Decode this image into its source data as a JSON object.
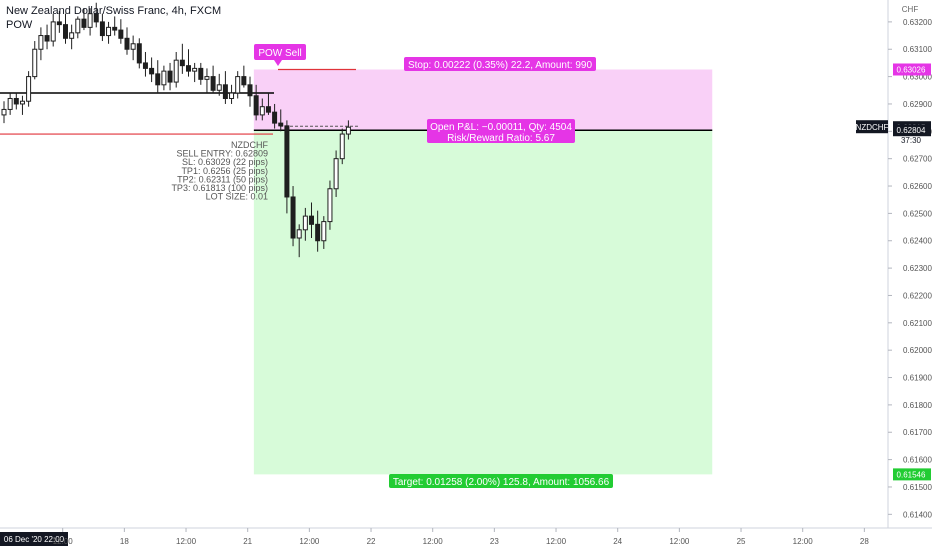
{
  "header": {
    "title": "New Zealand Dollar/Swiss Franc, 4h, FXCM",
    "indicator": "POW"
  },
  "colors": {
    "up_candle": "#1f1f1f",
    "down_candle": "#1f1f1f",
    "stop_zone": "#f9d0f7",
    "target_zone": "#d7fbd9",
    "stop_label": "#e535e6",
    "target_label": "#22cc33",
    "sell_line": "#e0333a",
    "entry_line": "#000000",
    "price_tag": "#131722"
  },
  "chart_data": {
    "type": "candlestick",
    "symbol": "NZDCHF",
    "currency": "CHF",
    "y_ticks": [
      0.632,
      0.631,
      0.63,
      0.629,
      0.628,
      0.627,
      0.626,
      0.625,
      0.624,
      0.623,
      0.622,
      0.621,
      0.62,
      0.619,
      0.618,
      0.617,
      0.616,
      0.615,
      0.614
    ],
    "y_tick_labels": [
      "0.63200",
      "0.63100",
      "0.63000",
      "0.62900",
      "0.62800",
      "0.62700",
      "0.62600",
      "0.62500",
      "0.62400",
      "0.62300",
      "0.62200",
      "0.62100",
      "0.62000",
      "0.61900",
      "0.61800",
      "0.61700",
      "0.61600",
      "0.61500",
      "0.61400"
    ],
    "ylim": [
      0.6135,
      0.6328
    ],
    "x_axis": {
      "start_label": "06 Dec '20  22:00",
      "ticks": [
        {
          "bar": 3,
          "label": "12:00"
        },
        {
          "bar": 6,
          "label": "18"
        },
        {
          "bar": 9,
          "label": "12:00"
        },
        {
          "bar": 12,
          "label": "21"
        },
        {
          "bar": 15,
          "label": "12:00"
        },
        {
          "bar": 18,
          "label": "22"
        },
        {
          "bar": 21,
          "label": "12:00"
        },
        {
          "bar": 24,
          "label": "23"
        },
        {
          "bar": 27,
          "label": "12:00"
        },
        {
          "bar": 30,
          "label": "24"
        },
        {
          "bar": 33,
          "label": "12:00"
        },
        {
          "bar": 36,
          "label": "25"
        },
        {
          "bar": 39,
          "label": "12:00"
        },
        {
          "bar": 42,
          "label": "28"
        }
      ],
      "bar_range": [
        -0.05,
        43.15
      ]
    },
    "candles": [
      {
        "o": 0.6286,
        "h": 0.6291,
        "l": 0.6283,
        "c": 0.6288
      },
      {
        "o": 0.6288,
        "h": 0.6294,
        "l": 0.6286,
        "c": 0.6292
      },
      {
        "o": 0.6292,
        "h": 0.6294,
        "l": 0.6288,
        "c": 0.629
      },
      {
        "o": 0.629,
        "h": 0.6293,
        "l": 0.6286,
        "c": 0.6291
      },
      {
        "o": 0.6291,
        "h": 0.6302,
        "l": 0.6289,
        "c": 0.63
      },
      {
        "o": 0.63,
        "h": 0.6313,
        "l": 0.6299,
        "c": 0.631
      },
      {
        "o": 0.631,
        "h": 0.6318,
        "l": 0.6306,
        "c": 0.6315
      },
      {
        "o": 0.6315,
        "h": 0.6319,
        "l": 0.631,
        "c": 0.6313
      },
      {
        "o": 0.6313,
        "h": 0.6323,
        "l": 0.6311,
        "c": 0.632
      },
      {
        "o": 0.632,
        "h": 0.6324,
        "l": 0.6316,
        "c": 0.6319
      },
      {
        "o": 0.6319,
        "h": 0.6323,
        "l": 0.6312,
        "c": 0.6314
      },
      {
        "o": 0.6314,
        "h": 0.6319,
        "l": 0.631,
        "c": 0.6316
      },
      {
        "o": 0.6316,
        "h": 0.6322,
        "l": 0.6314,
        "c": 0.6321
      },
      {
        "o": 0.6321,
        "h": 0.6325,
        "l": 0.6317,
        "c": 0.6318
      },
      {
        "o": 0.6318,
        "h": 0.6325,
        "l": 0.6315,
        "c": 0.6323
      },
      {
        "o": 0.6323,
        "h": 0.6327,
        "l": 0.6318,
        "c": 0.632
      },
      {
        "o": 0.632,
        "h": 0.6323,
        "l": 0.6313,
        "c": 0.6315
      },
      {
        "o": 0.6315,
        "h": 0.632,
        "l": 0.6312,
        "c": 0.6318
      },
      {
        "o": 0.6318,
        "h": 0.6322,
        "l": 0.6315,
        "c": 0.6317
      },
      {
        "o": 0.6317,
        "h": 0.6321,
        "l": 0.6312,
        "c": 0.6314
      },
      {
        "o": 0.6314,
        "h": 0.6318,
        "l": 0.6308,
        "c": 0.631
      },
      {
        "o": 0.631,
        "h": 0.6315,
        "l": 0.6306,
        "c": 0.6312
      },
      {
        "o": 0.6312,
        "h": 0.6314,
        "l": 0.6303,
        "c": 0.6305
      },
      {
        "o": 0.6305,
        "h": 0.6309,
        "l": 0.63,
        "c": 0.6303
      },
      {
        "o": 0.6303,
        "h": 0.6307,
        "l": 0.6298,
        "c": 0.6301
      },
      {
        "o": 0.6301,
        "h": 0.6306,
        "l": 0.6294,
        "c": 0.6297
      },
      {
        "o": 0.6297,
        "h": 0.6304,
        "l": 0.6295,
        "c": 0.6302
      },
      {
        "o": 0.6302,
        "h": 0.6305,
        "l": 0.6295,
        "c": 0.6298
      },
      {
        "o": 0.6298,
        "h": 0.6309,
        "l": 0.6296,
        "c": 0.6306
      },
      {
        "o": 0.6306,
        "h": 0.6312,
        "l": 0.6301,
        "c": 0.6304
      },
      {
        "o": 0.6304,
        "h": 0.631,
        "l": 0.63,
        "c": 0.6302
      },
      {
        "o": 0.6302,
        "h": 0.6305,
        "l": 0.6298,
        "c": 0.6303
      },
      {
        "o": 0.6303,
        "h": 0.6305,
        "l": 0.6297,
        "c": 0.6299
      },
      {
        "o": 0.6299,
        "h": 0.6303,
        "l": 0.6294,
        "c": 0.63
      },
      {
        "o": 0.63,
        "h": 0.6304,
        "l": 0.6294,
        "c": 0.6295
      },
      {
        "o": 0.6295,
        "h": 0.6301,
        "l": 0.6293,
        "c": 0.6297
      },
      {
        "o": 0.6297,
        "h": 0.6302,
        "l": 0.629,
        "c": 0.6292
      },
      {
        "o": 0.6292,
        "h": 0.6297,
        "l": 0.629,
        "c": 0.6294
      },
      {
        "o": 0.6294,
        "h": 0.6302,
        "l": 0.6292,
        "c": 0.63
      },
      {
        "o": 0.63,
        "h": 0.6304,
        "l": 0.6296,
        "c": 0.6297
      },
      {
        "o": 0.6297,
        "h": 0.63,
        "l": 0.6289,
        "c": 0.6293
      },
      {
        "o": 0.6293,
        "h": 0.6297,
        "l": 0.6284,
        "c": 0.6286
      },
      {
        "o": 0.6286,
        "h": 0.6292,
        "l": 0.6284,
        "c": 0.6289
      },
      {
        "o": 0.6289,
        "h": 0.6294,
        "l": 0.6286,
        "c": 0.6287
      },
      {
        "o": 0.6287,
        "h": 0.629,
        "l": 0.6281,
        "c": 0.6283
      },
      {
        "o": 0.6283,
        "h": 0.6288,
        "l": 0.628,
        "c": 0.6282
      },
      {
        "o": 0.6282,
        "h": 0.6284,
        "l": 0.625,
        "c": 0.6256
      },
      {
        "o": 0.6256,
        "h": 0.626,
        "l": 0.6238,
        "c": 0.6241
      },
      {
        "o": 0.6241,
        "h": 0.6246,
        "l": 0.6234,
        "c": 0.6244
      },
      {
        "o": 0.6244,
        "h": 0.6252,
        "l": 0.624,
        "c": 0.6249
      },
      {
        "o": 0.6249,
        "h": 0.6254,
        "l": 0.6241,
        "c": 0.6246
      },
      {
        "o": 0.6246,
        "h": 0.6251,
        "l": 0.6236,
        "c": 0.624
      },
      {
        "o": 0.624,
        "h": 0.6249,
        "l": 0.6237,
        "c": 0.6247
      },
      {
        "o": 0.6247,
        "h": 0.6262,
        "l": 0.6244,
        "c": 0.6259
      },
      {
        "o": 0.6259,
        "h": 0.6273,
        "l": 0.6256,
        "c": 0.627
      },
      {
        "o": 0.627,
        "h": 0.6281,
        "l": 0.6268,
        "c": 0.6279
      },
      {
        "o": 0.6279,
        "h": 0.6284,
        "l": 0.6277,
        "c": 0.62815
      }
    ],
    "levels": {
      "stop": 0.63026,
      "current": 0.62815,
      "entry": 0.62804,
      "target": 0.61546,
      "sell_signal": 0.63026,
      "horizontal_line": 0.6294,
      "sl_marker": 0.6279
    },
    "position": {
      "start_bar": 12.3,
      "end_bar": 34.6,
      "stop_label": "Stop: 0.00222 (0.35%) 22.2, Amount: 990",
      "target_label": "Target: 0.01258 (2.00%) 125.8, Amount: 1056.66",
      "pnl_label": "Open P&L: −0.00011, Qty: 4504",
      "rr_label": "Risk/Reward Ratio: 5.67"
    },
    "price_tags": {
      "stop": "0.63026",
      "current": "0.62815",
      "countdown": "37:30",
      "entry": "0.62804",
      "target": "0.61546"
    },
    "annotations": {
      "signal_label": "POW Sell",
      "info_lines": [
        "NZDCHF",
        "SELL ENTRY: 0.62809",
        "SL: 0.63029 (22 pips)",
        "TP1: 0.6256 (25 pips)",
        "TP2: 0.62311 (50 pips)",
        "TP3: 0.61813 (100 pips)",
        "LOT SIZE: 0.01"
      ]
    }
  }
}
